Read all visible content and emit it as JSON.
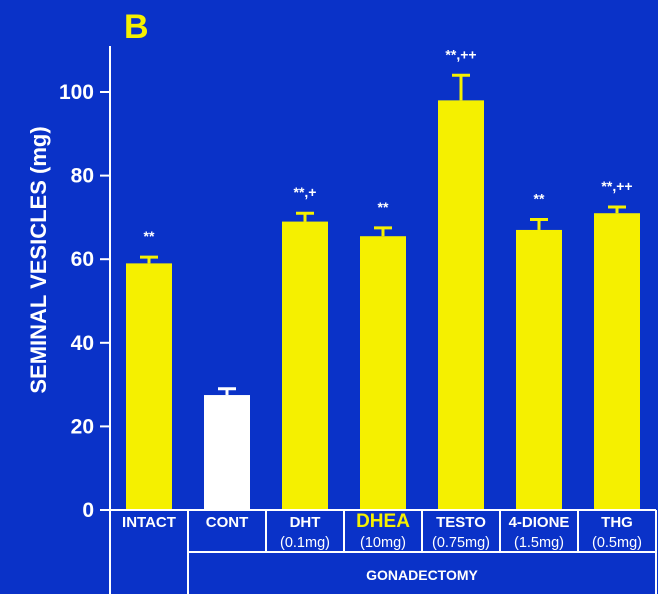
{
  "panel_label": "B",
  "colors": {
    "background": "#0a32c8",
    "bar_default": "#f5f000",
    "bar_control": "#ffffff",
    "text": "#ffffff",
    "highlight_text": "#f5f000"
  },
  "chart_data": {
    "type": "bar",
    "ylabel": "SEMINAL VESICLES (mg)",
    "ylim": [
      0,
      100
    ],
    "yticks": [
      "0",
      "20",
      "40",
      "60",
      "80",
      "100"
    ],
    "categories": [
      {
        "label": "INTACT",
        "dose": "",
        "value": 59,
        "error": 1.5,
        "sig": "**",
        "color": "yellow",
        "highlight": false
      },
      {
        "label": "CONT",
        "dose": "",
        "value": 27.5,
        "error": 1.5,
        "sig": "",
        "color": "white",
        "highlight": false
      },
      {
        "label": "DHT",
        "dose": "(0.1mg)",
        "value": 69,
        "error": 2,
        "sig": "**,+",
        "color": "yellow",
        "highlight": false
      },
      {
        "label": "DHEA",
        "dose": "(10mg)",
        "value": 65.5,
        "error": 2,
        "sig": "**",
        "color": "yellow",
        "highlight": true
      },
      {
        "label": "TESTO",
        "dose": "(0.75mg)",
        "value": 98,
        "error": 6,
        "sig": "**,++",
        "color": "yellow",
        "highlight": false
      },
      {
        "label": "4-DIONE",
        "dose": "(1.5mg)",
        "value": 67,
        "error": 2.5,
        "sig": "**",
        "color": "yellow",
        "highlight": false
      },
      {
        "label": "THG",
        "dose": "(0.5mg)",
        "value": 71,
        "error": 1.5,
        "sig": "**,++",
        "color": "yellow",
        "highlight": false
      }
    ],
    "group_label": "GONADECTOMY",
    "legend": "none",
    "grid": false
  }
}
